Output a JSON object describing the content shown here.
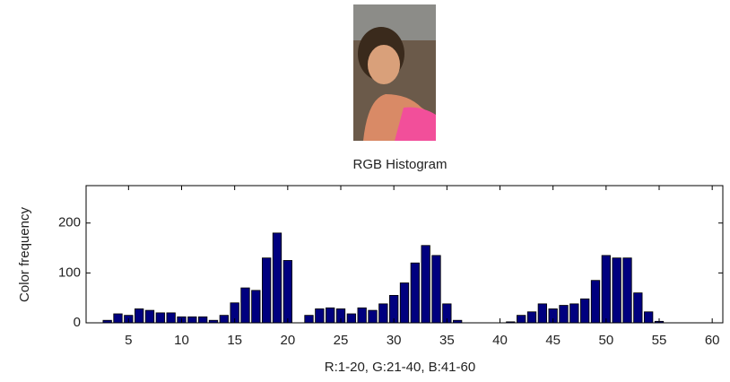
{
  "chart_data": {
    "type": "bar",
    "title": "RGB Histogram",
    "x_label": "R:1-20,  G:21-40,  B:41-60",
    "y_label": "Color frequency",
    "x": [
      1,
      2,
      3,
      4,
      5,
      6,
      7,
      8,
      9,
      10,
      11,
      12,
      13,
      14,
      15,
      16,
      17,
      18,
      19,
      20,
      21,
      22,
      23,
      24,
      25,
      26,
      27,
      28,
      29,
      30,
      31,
      32,
      33,
      34,
      35,
      36,
      37,
      38,
      39,
      40,
      41,
      42,
      43,
      44,
      45,
      46,
      47,
      48,
      49,
      50,
      51,
      52,
      53,
      54,
      55,
      56,
      57,
      58,
      59,
      60
    ],
    "values": [
      0,
      0,
      5,
      18,
      15,
      28,
      25,
      20,
      20,
      12,
      12,
      12,
      5,
      15,
      40,
      70,
      65,
      130,
      180,
      125,
      0,
      15,
      28,
      30,
      28,
      18,
      30,
      25,
      38,
      55,
      80,
      120,
      155,
      135,
      38,
      5,
      0,
      0,
      0,
      0,
      2,
      15,
      22,
      38,
      28,
      35,
      38,
      48,
      85,
      135,
      130,
      130,
      60,
      22,
      3,
      0,
      0,
      0,
      0,
      0
    ],
    "color": "#00007f",
    "xlim": [
      1,
      61
    ],
    "xticks": [
      5,
      10,
      15,
      20,
      25,
      30,
      35,
      40,
      45,
      50,
      55,
      60
    ],
    "ylim": [
      0,
      275
    ],
    "yticks": [
      0,
      100,
      200
    ]
  }
}
